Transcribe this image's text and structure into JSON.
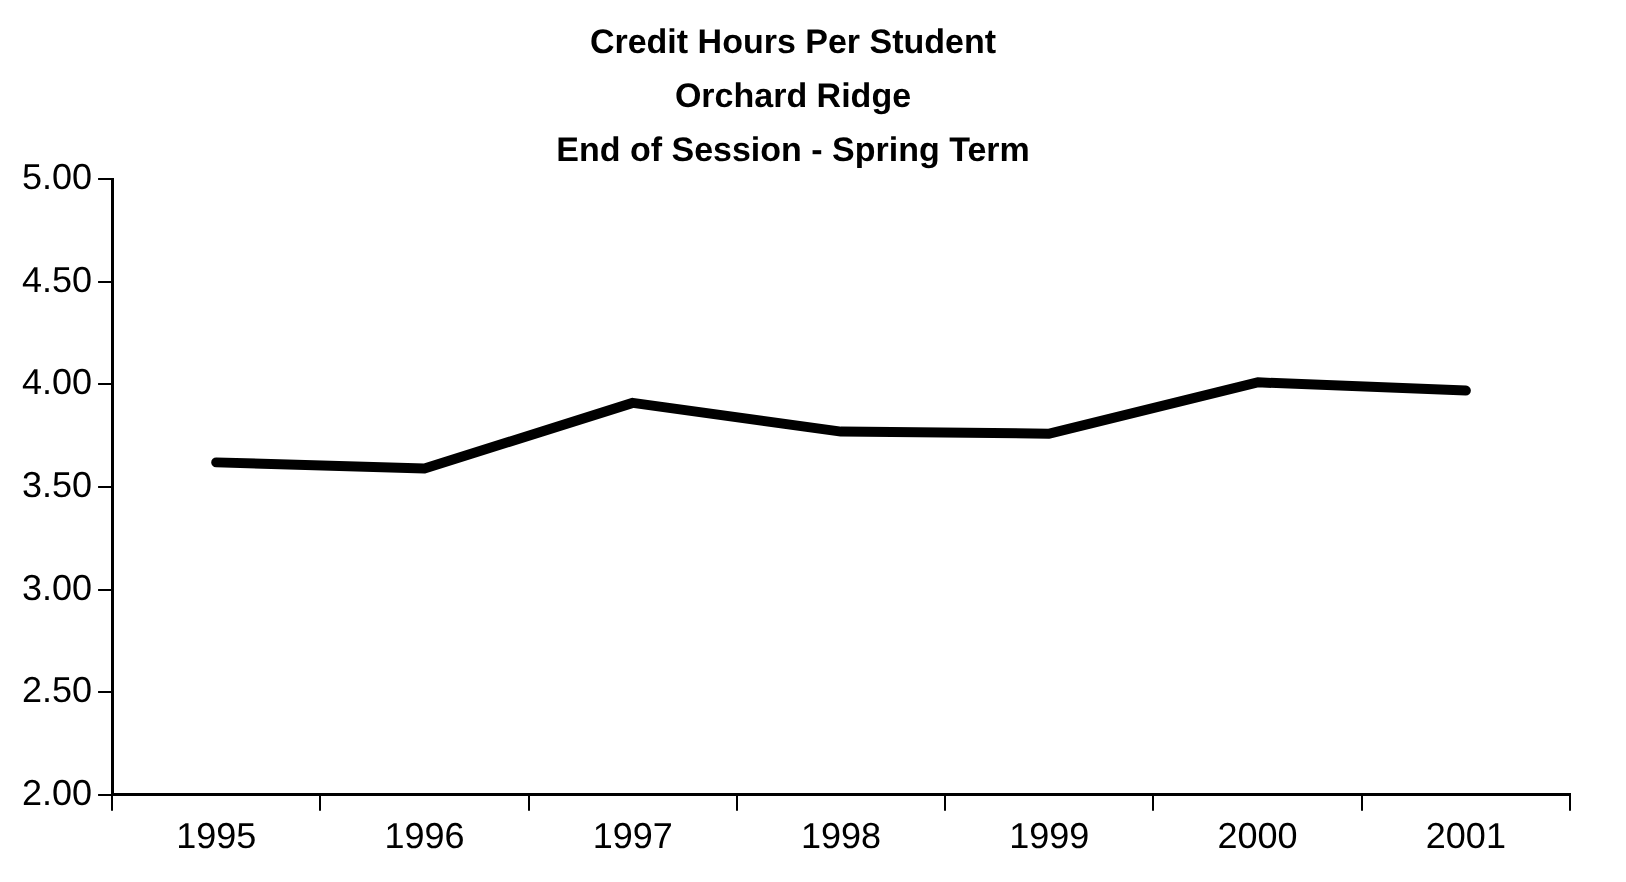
{
  "chart_data": {
    "type": "line",
    "title": "Credit Hours Per Student\nOrchard Ridge\nEnd of Session - Spring Term",
    "categories": [
      "1995",
      "1996",
      "1997",
      "1998",
      "1999",
      "2000",
      "2001"
    ],
    "series": [
      {
        "color": "#000000",
        "values": [
          3.62,
          3.59,
          3.91,
          3.77,
          3.76,
          4.01,
          3.97
        ]
      }
    ],
    "ylim": [
      2,
      5
    ],
    "yticks": [
      {
        "value": 2,
        "label": "2.00"
      },
      {
        "value": 2.5,
        "label": "2.50"
      },
      {
        "value": 3,
        "label": "3.00"
      },
      {
        "value": 3.5,
        "label": "3.50"
      },
      {
        "value": 4,
        "label": "4.00"
      },
      {
        "value": 4.5,
        "label": "4.50"
      },
      {
        "value": 5,
        "label": "5.00"
      }
    ],
    "grid": false,
    "legend": false,
    "marker": "none",
    "line_style": "solid"
  }
}
